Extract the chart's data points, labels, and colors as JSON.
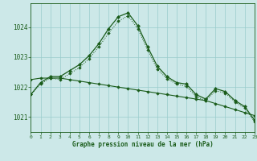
{
  "title": "Graphe pression niveau de la mer (hPa)",
  "background_color": "#cce8e8",
  "grid_color": "#99cccc",
  "line_color": "#1a5c1a",
  "xlim": [
    0,
    23
  ],
  "ylim": [
    1020.5,
    1024.8
  ],
  "yticks": [
    1021,
    1022,
    1023,
    1024
  ],
  "xticks": [
    0,
    1,
    2,
    3,
    4,
    5,
    6,
    7,
    8,
    9,
    10,
    11,
    12,
    13,
    14,
    15,
    16,
    17,
    18,
    19,
    20,
    21,
    22,
    23
  ],
  "series1_x": [
    0,
    1,
    2,
    3,
    4,
    5,
    6,
    7,
    8,
    9,
    10,
    11,
    12,
    13,
    14,
    15,
    16,
    17,
    18,
    19,
    20,
    21,
    22,
    23
  ],
  "series1_y": [
    1021.75,
    1022.15,
    1022.35,
    1022.35,
    1022.55,
    1022.75,
    1023.05,
    1023.45,
    1023.95,
    1024.35,
    1024.48,
    1024.05,
    1023.35,
    1022.7,
    1022.35,
    1022.15,
    1022.1,
    1021.75,
    1021.6,
    1021.95,
    1021.85,
    1021.55,
    1021.35,
    1020.9
  ],
  "series2_x": [
    0,
    1,
    2,
    3,
    4,
    5,
    6,
    7,
    8,
    9,
    10,
    11,
    12,
    13,
    14,
    15,
    16,
    17,
    18,
    19,
    20,
    21,
    22,
    23
  ],
  "series2_y": [
    1022.25,
    1022.3,
    1022.3,
    1022.3,
    1022.25,
    1022.2,
    1022.15,
    1022.1,
    1022.05,
    1022.0,
    1021.95,
    1021.9,
    1021.85,
    1021.8,
    1021.75,
    1021.7,
    1021.65,
    1021.6,
    1021.55,
    1021.45,
    1021.35,
    1021.25,
    1021.15,
    1021.05
  ],
  "series3_x": [
    0,
    1,
    2,
    3,
    4,
    5,
    6,
    7,
    8,
    9,
    10,
    11,
    12,
    13,
    14,
    15,
    16,
    17,
    18,
    19,
    20,
    21,
    22,
    23
  ],
  "series3_y": [
    1021.75,
    1022.1,
    1022.3,
    1022.25,
    1022.45,
    1022.65,
    1022.95,
    1023.35,
    1023.8,
    1024.2,
    1024.38,
    1023.95,
    1023.25,
    1022.6,
    1022.28,
    1022.1,
    1022.02,
    1021.68,
    1021.55,
    1021.88,
    1021.8,
    1021.5,
    1021.3,
    1020.85
  ]
}
